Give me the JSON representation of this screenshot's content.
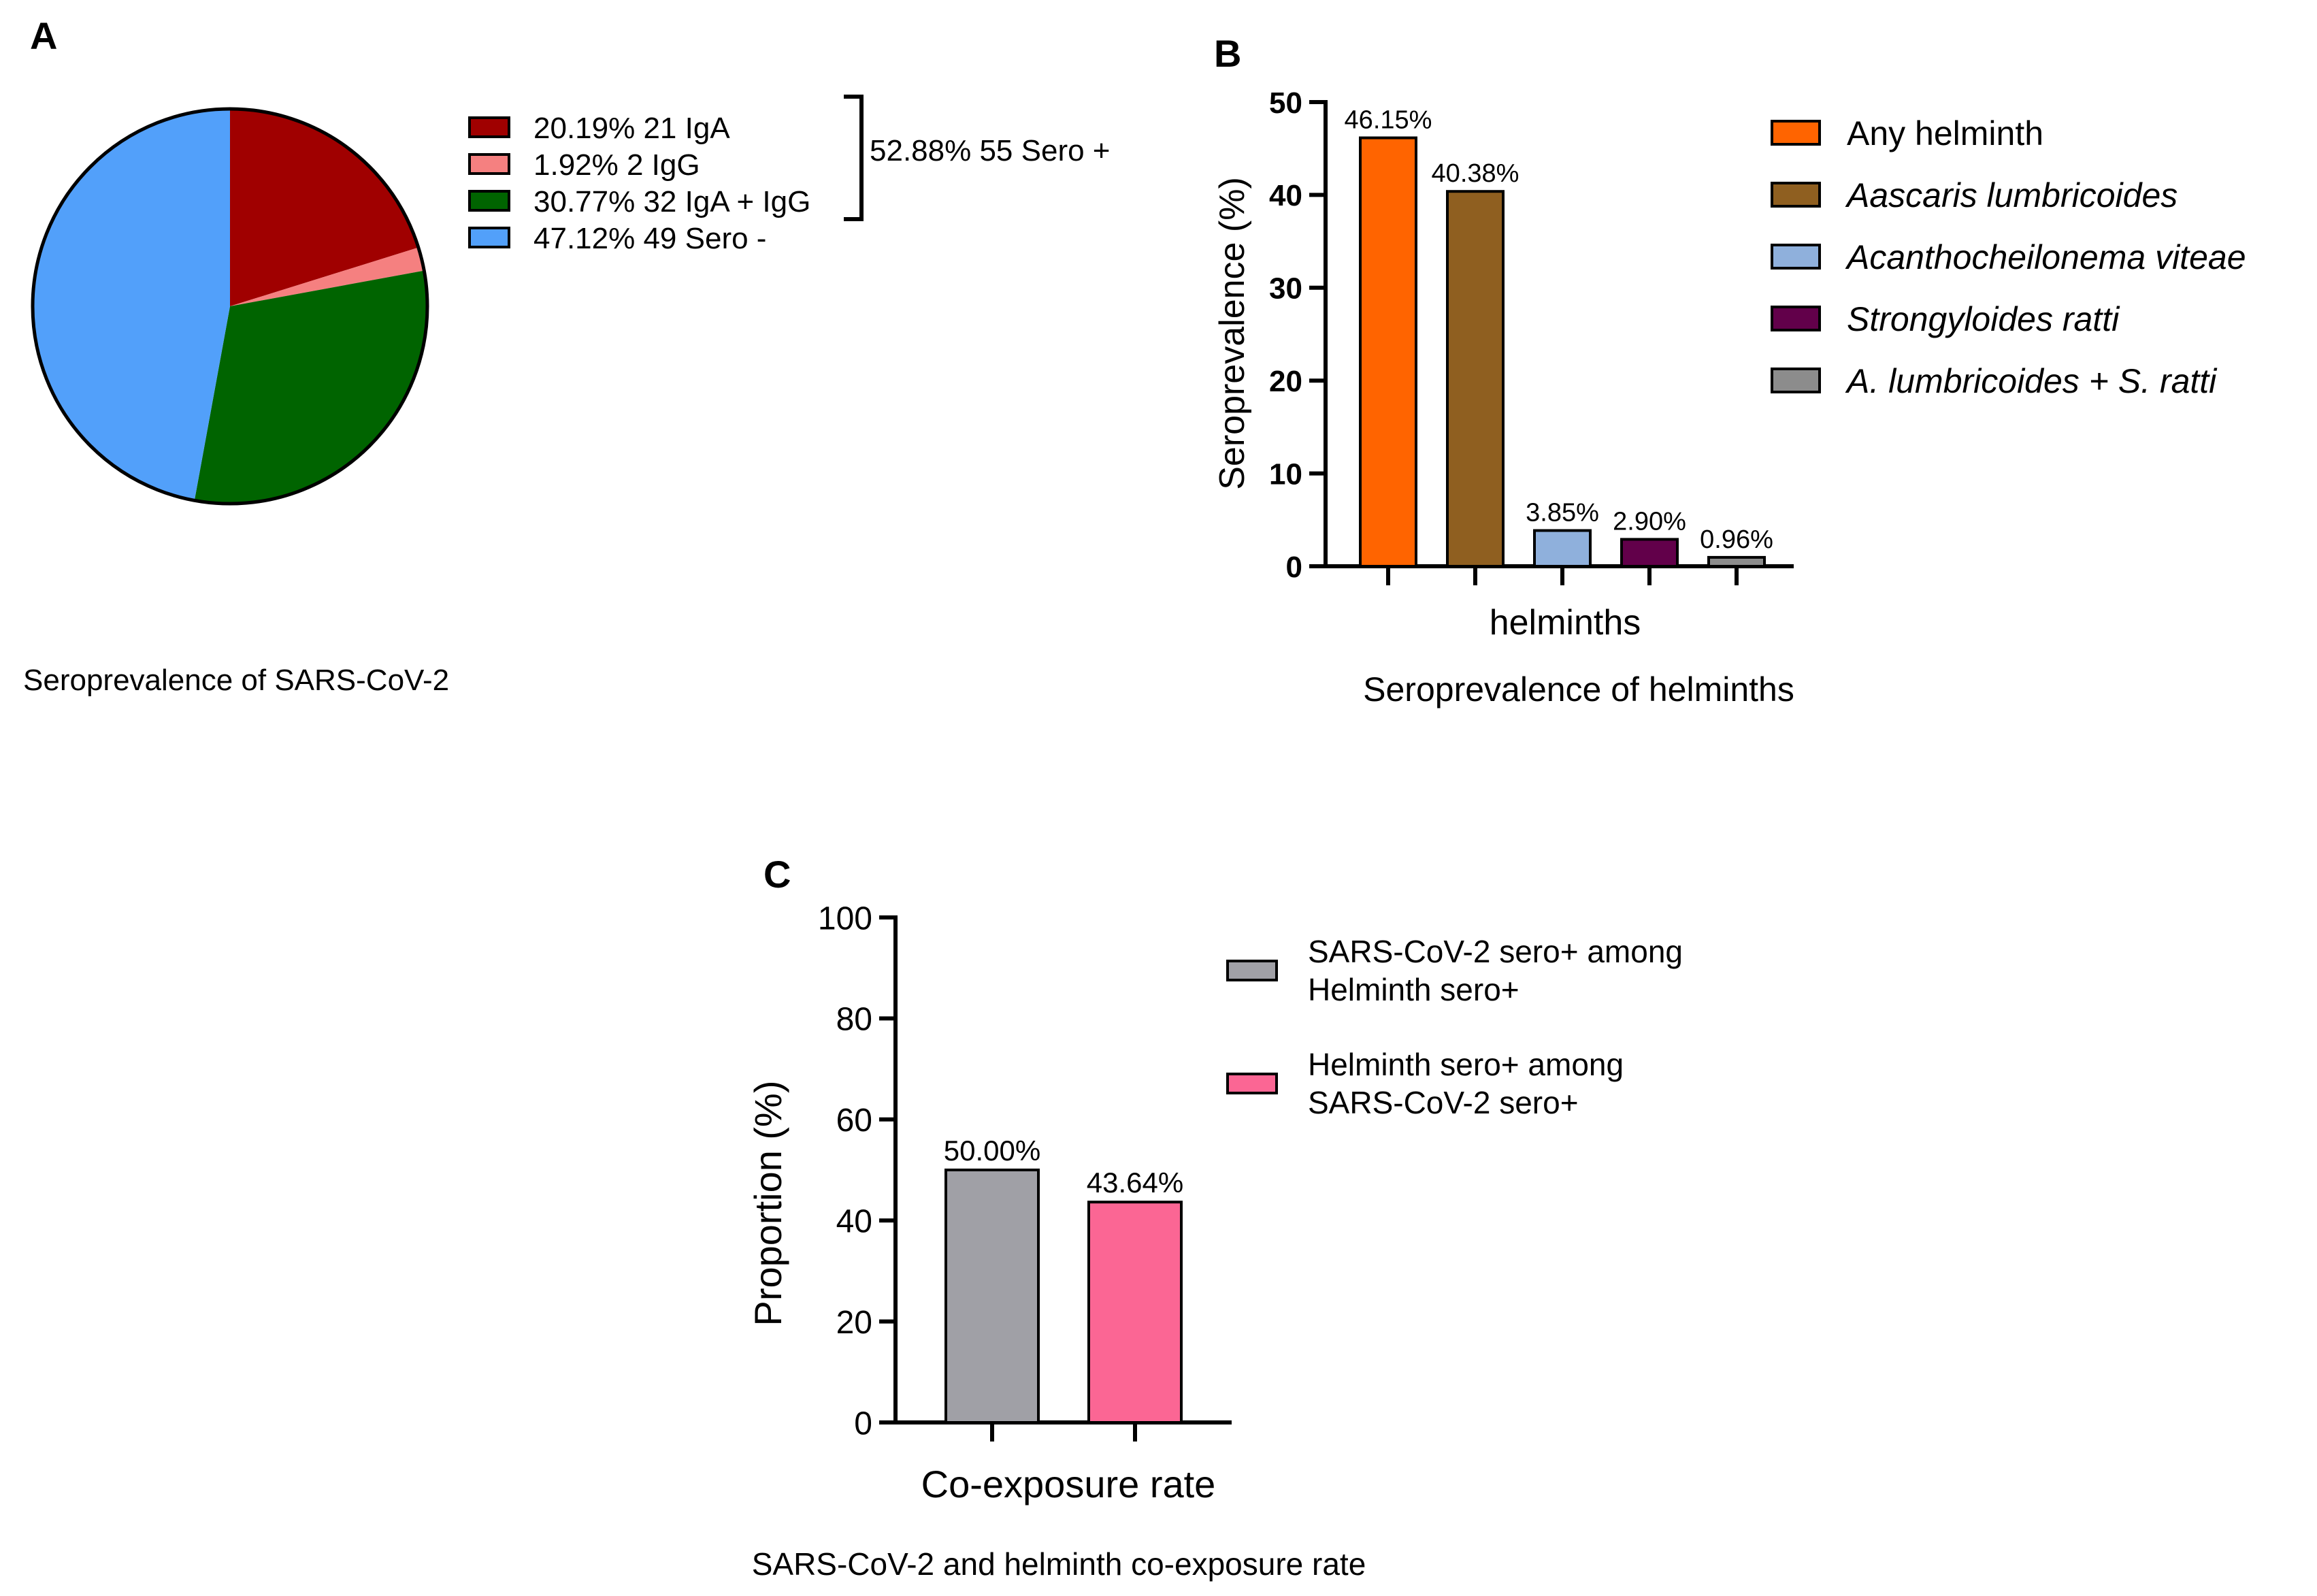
{
  "panel_a": {
    "letter": "A",
    "caption": "Seroprevalence of SARS-CoV-2",
    "bracket_label": "52.88% 55 Sero +"
  },
  "panel_b": {
    "letter": "B",
    "caption": "Seroprevalence of helminths"
  },
  "panel_c": {
    "letter": "C",
    "caption": "SARS-CoV-2 and helminth co-exposure rate"
  },
  "chart_data": [
    {
      "type": "pie",
      "title": "Seroprevalence of SARS-CoV-2",
      "slices": [
        {
          "label": "20.19%  21 IgA",
          "value": 20.19,
          "color": "#a00000"
        },
        {
          "label": "1.92%  2 IgG",
          "value": 1.92,
          "color": "#f58080"
        },
        {
          "label": "30.77%  32 IgA + IgG",
          "value": 30.77,
          "color": "#006400"
        },
        {
          "label": "47.12%  49 Sero -",
          "value": 47.12,
          "color": "#52a0fa"
        }
      ],
      "group_annotation": "52.88% 55 Sero +"
    },
    {
      "type": "bar",
      "title": "Seroprevalence of helminths",
      "xlabel": "helminths",
      "ylabel": "Seroprevalence (%)",
      "ylim": [
        0,
        50
      ],
      "yticks": [
        "0",
        "10",
        "20",
        "30",
        "40",
        "50"
      ],
      "categories": [
        "Any helminth",
        "Aascaris lumbricoides",
        "Acanthocheilonema viteae",
        "Strongyloides ratti",
        "A. lumbricoides + S. ratti"
      ],
      "values": [
        46.15,
        40.38,
        3.85,
        2.9,
        0.96
      ],
      "data_labels": [
        "46.15%",
        "40.38%",
        "3.85%",
        "2.90%",
        "0.96%"
      ],
      "colors": [
        "#ff6400",
        "#8f5f20",
        "#8fb0dc",
        "#62004a",
        "#8c8c8c"
      ],
      "legend": {
        "position": "right",
        "entries": [
          {
            "text": "Any helminth",
            "italic": false
          },
          {
            "text": "Aascaris lumbricoides",
            "italic": true
          },
          {
            "text": "Acanthocheilonema viteae",
            "italic": true
          },
          {
            "text": "Strongyloides ratti",
            "italic": true
          },
          {
            "text": "A. lumbricoides + S. ratti",
            "italic": true
          }
        ]
      }
    },
    {
      "type": "bar",
      "title": "SARS-CoV-2 and helminth co-exposure rate",
      "xlabel": "Co-exposure rate",
      "ylabel": "Proportion (%)",
      "ylim": [
        0,
        100
      ],
      "yticks": [
        "0",
        "20",
        "40",
        "60",
        "80",
        "100"
      ],
      "categories": [
        "SARS-CoV-2 sero+ among Helminth sero+",
        "Helminth sero+ among SARS-CoV-2 sero+"
      ],
      "values": [
        50.0,
        43.64
      ],
      "data_labels": [
        "50.00%",
        "43.64%"
      ],
      "colors": [
        "#a0a0a6",
        "#fb6694"
      ],
      "legend": {
        "position": "right",
        "entries": [
          {
            "line1": "SARS-CoV-2 sero+ among",
            "line2": "Helminth sero+"
          },
          {
            "line1": "Helminth sero+ among",
            "line2": "SARS-CoV-2 sero+"
          }
        ]
      }
    }
  ]
}
